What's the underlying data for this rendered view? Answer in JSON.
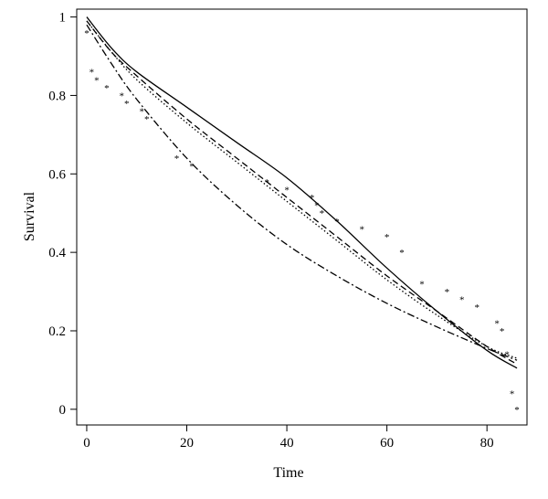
{
  "chart_data": {
    "type": "line",
    "title": "",
    "xlabel": "Time",
    "ylabel": "Survival",
    "xlim": [
      -2,
      88
    ],
    "ylim": [
      -0.04,
      1.02
    ],
    "xticks": [
      0,
      20,
      40,
      60,
      80
    ],
    "yticks": [
      0,
      0.2,
      0.4,
      0.6,
      0.8,
      1
    ],
    "xtick_labels": [
      "0",
      "20",
      "40",
      "60",
      "80"
    ],
    "ytick_labels": [
      "0",
      "0.2",
      "0.4",
      "0.6",
      "0.8",
      "1"
    ],
    "grid": false,
    "legend": "none",
    "series": [
      {
        "style": "solid",
        "x": [
          0,
          5,
          10,
          20,
          30,
          40,
          50,
          60,
          70,
          80,
          86
        ],
        "y": [
          1.0,
          0.92,
          0.86,
          0.77,
          0.68,
          0.59,
          0.48,
          0.36,
          0.25,
          0.15,
          0.105
        ]
      },
      {
        "style": "dashed",
        "x": [
          0,
          5,
          10,
          20,
          30,
          40,
          50,
          60,
          70,
          80,
          86
        ],
        "y": [
          0.99,
          0.91,
          0.85,
          0.74,
          0.64,
          0.54,
          0.44,
          0.34,
          0.25,
          0.16,
          0.115
        ]
      },
      {
        "style": "dotted",
        "x": [
          0,
          5,
          10,
          20,
          30,
          40,
          50,
          60,
          70,
          80,
          86
        ],
        "y": [
          0.99,
          0.91,
          0.84,
          0.73,
          0.63,
          0.53,
          0.43,
          0.33,
          0.24,
          0.16,
          0.13
        ]
      },
      {
        "style": "dashdot",
        "x": [
          0,
          5,
          10,
          20,
          30,
          40,
          50,
          60,
          70,
          80,
          86
        ],
        "y": [
          0.98,
          0.88,
          0.79,
          0.64,
          0.52,
          0.42,
          0.34,
          0.27,
          0.21,
          0.155,
          0.125
        ]
      }
    ],
    "km_points": {
      "marker": "*",
      "x": [
        0,
        1,
        2,
        4,
        7,
        8,
        11,
        12,
        18,
        21,
        36,
        40,
        45,
        46,
        47,
        50,
        55,
        60,
        63,
        67,
        72,
        75,
        78,
        82,
        83,
        84,
        85,
        86
      ],
      "y": [
        0.96,
        0.86,
        0.84,
        0.82,
        0.8,
        0.78,
        0.76,
        0.74,
        0.64,
        0.62,
        0.58,
        0.56,
        0.54,
        0.52,
        0.5,
        0.48,
        0.46,
        0.44,
        0.4,
        0.32,
        0.3,
        0.28,
        0.26,
        0.22,
        0.2,
        0.14,
        0.04,
        0.0
      ]
    }
  }
}
